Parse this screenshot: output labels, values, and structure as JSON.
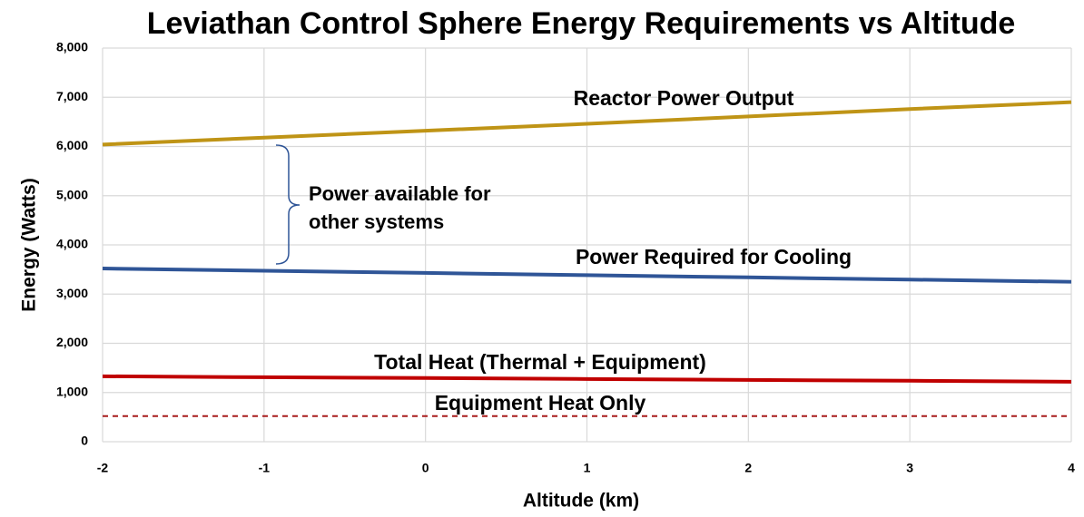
{
  "chart_data": {
    "type": "line",
    "title": "Leviathan Control Sphere Energy Requirements vs Altitude",
    "x_label": "Altitude (km)",
    "y_label": "Energy (Watts)",
    "x": [
      -2,
      -1,
      0,
      1,
      2,
      3,
      4
    ],
    "series": [
      {
        "name": "Reactor Power Output",
        "color": "#bf9416",
        "dashed": false,
        "values": [
          6040,
          6180,
          6320,
          6460,
          6610,
          6760,
          6900
        ]
      },
      {
        "name": "Power Required for Cooling",
        "color": "#2f5597",
        "dashed": false,
        "values": [
          3520,
          3475,
          3430,
          3385,
          3340,
          3295,
          3250
        ]
      },
      {
        "name": "Total Heat (Thermal + Equipment)",
        "color": "#c00000",
        "dashed": false,
        "values": [
          1330,
          1310,
          1295,
          1275,
          1255,
          1240,
          1220
        ]
      },
      {
        "name": "Equipment Heat Only",
        "color": "#a81c1c",
        "dashed": true,
        "values": [
          520,
          520,
          520,
          520,
          520,
          520,
          520
        ]
      }
    ],
    "annotation": [
      "Power available for",
      "other systems"
    ],
    "xlim": [
      -2,
      4
    ],
    "xticks": [
      -2,
      -1,
      0,
      1,
      2,
      3,
      4
    ],
    "ylim": [
      0,
      8000
    ],
    "yticks": [
      0,
      {
        "value": 1000,
        "label": "1,000"
      },
      {
        "value": 2000,
        "label": "2,000"
      },
      {
        "value": 3000,
        "label": "3,000"
      },
      {
        "value": 4000,
        "label": "4,000"
      },
      {
        "value": 5000,
        "label": "5,000"
      },
      {
        "value": 6000,
        "label": "6,000"
      },
      {
        "value": 7000,
        "label": "7,000"
      },
      {
        "value": 8000,
        "label": "8,000"
      }
    ],
    "grid": true
  }
}
